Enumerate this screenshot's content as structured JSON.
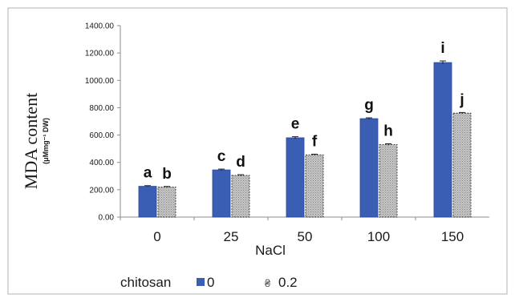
{
  "chart_data": {
    "type": "bar",
    "xlabel": "NaCl",
    "ylabel": "MDA content",
    "ylabel_unit": "(μMmg⁻¹ DW)",
    "categories": [
      "0",
      "25",
      "50",
      "100",
      "150"
    ],
    "ylim": [
      0,
      1400
    ],
    "yticks": [
      "0.00",
      "200.00",
      "400.00",
      "600.00",
      "800.00",
      "1000.00",
      "1200.00",
      "1400.00"
    ],
    "grid": false,
    "legend_position": "bottom-left",
    "legend_title": "chitosan",
    "series": [
      {
        "name": "0",
        "color": "#3b5eb5",
        "values": [
          225,
          345,
          580,
          720,
          1130
        ],
        "errors": [
          5,
          6,
          8,
          6,
          12
        ],
        "letters": [
          "a",
          "c",
          "e",
          "g",
          "i"
        ]
      },
      {
        "name": "0.2",
        "color": "#b8b8b8",
        "pattern": "dotted",
        "values": [
          220,
          305,
          455,
          530,
          760
        ],
        "errors": [
          4,
          5,
          5,
          6,
          5
        ],
        "letters": [
          "b",
          "d",
          "f",
          "h",
          "j"
        ]
      }
    ]
  },
  "legend_glyph": "₴"
}
